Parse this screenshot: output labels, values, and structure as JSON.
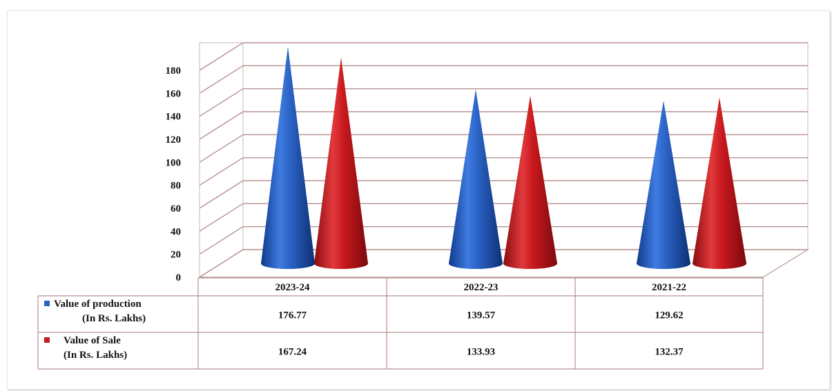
{
  "chart_data": {
    "type": "bar",
    "style": "3d-cone",
    "categories": [
      "2023-24",
      "2022-23",
      "2021-22"
    ],
    "series": [
      {
        "name": "Value of production",
        "name_unit": "(In Rs. Lakhs)",
        "color": "#2a62c4",
        "values": [
          176.77,
          139.57,
          129.62
        ],
        "value_labels": [
          "176.77",
          "139.57",
          "129.62"
        ]
      },
      {
        "name": "Value of Sale",
        "name_unit": "(In Rs. Lakhs)",
        "color": "#c8191e",
        "values": [
          167.24,
          133.93,
          132.37
        ],
        "value_labels": [
          "167.24",
          "133.93",
          "132.37"
        ]
      }
    ],
    "yticks": [
      "0",
      "20",
      "40",
      "60",
      "80",
      "100",
      "120",
      "140",
      "160",
      "180"
    ],
    "ylim": [
      0,
      180
    ],
    "grid": true,
    "legend": "data-table-left"
  }
}
